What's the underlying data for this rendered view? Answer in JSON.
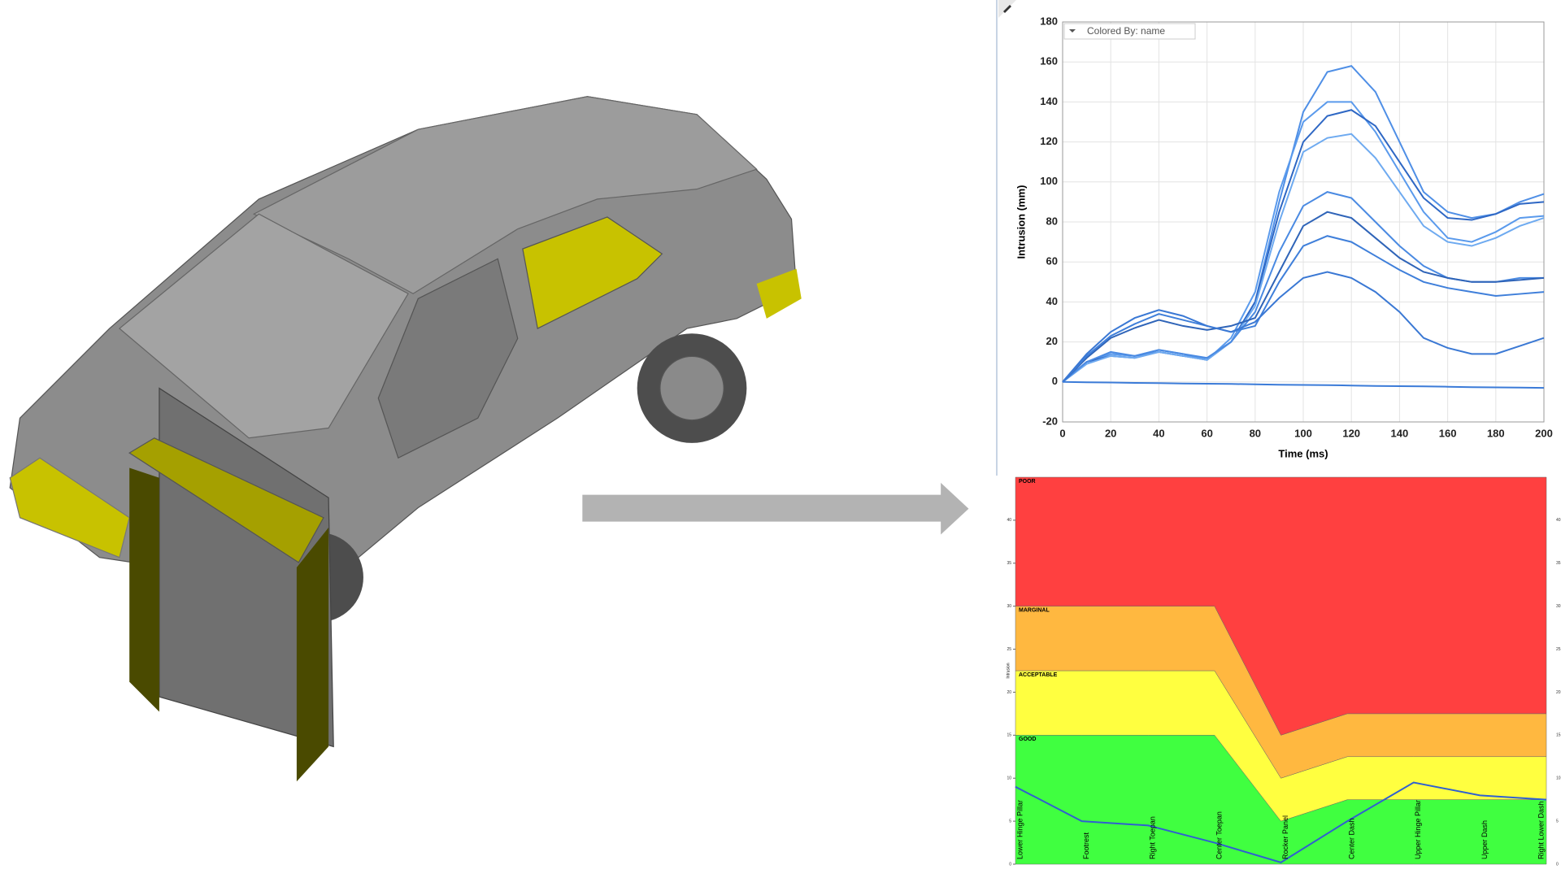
{
  "chart_data": [
    {
      "type": "line",
      "x_label": "Time (ms)",
      "y_label": "Intrusion (mm)",
      "colored_by": "Colored By: name",
      "x": [
        0,
        10,
        20,
        30,
        40,
        50,
        60,
        70,
        80,
        90,
        100,
        110,
        120,
        130,
        140,
        150,
        160,
        170,
        180,
        190,
        200
      ],
      "xlim": [
        0,
        200
      ],
      "ylim": [
        -20,
        180
      ],
      "xticks": [
        0,
        20,
        40,
        60,
        80,
        100,
        120,
        140,
        160,
        180,
        200
      ],
      "yticks": [
        -20,
        0,
        20,
        40,
        60,
        80,
        100,
        120,
        140,
        160,
        180
      ],
      "grid": true,
      "series": [
        {
          "color": "#4f8fe6",
          "values": [
            0,
            10,
            14,
            13,
            15,
            13,
            12,
            20,
            40,
            90,
            135,
            155,
            158,
            145,
            120,
            95,
            85,
            82,
            84,
            90,
            94
          ]
        },
        {
          "color": "#5a9aec",
          "values": [
            0,
            10,
            14,
            13,
            16,
            14,
            11,
            22,
            45,
            95,
            130,
            140,
            140,
            125,
            105,
            85,
            72,
            70,
            75,
            82,
            83
          ]
        },
        {
          "color": "#2e67c4",
          "values": [
            0,
            10,
            13,
            12,
            15,
            13,
            11,
            20,
            40,
            85,
            120,
            133,
            136,
            128,
            110,
            92,
            82,
            81,
            84,
            89,
            90
          ]
        },
        {
          "color": "#6eaaf0",
          "values": [
            0,
            9,
            13,
            12,
            15,
            13,
            11,
            20,
            38,
            80,
            115,
            122,
            124,
            112,
            95,
            78,
            70,
            68,
            72,
            78,
            82
          ]
        },
        {
          "color": "#4a8ae2",
          "values": [
            0,
            10,
            15,
            13,
            16,
            14,
            12,
            20,
            35,
            65,
            88,
            95,
            92,
            80,
            68,
            58,
            52,
            50,
            50,
            52,
            52
          ]
        },
        {
          "color": "#2f64b8",
          "values": [
            0,
            12,
            22,
            27,
            31,
            28,
            26,
            28,
            32,
            55,
            78,
            85,
            82,
            72,
            62,
            55,
            52,
            50,
            50,
            51,
            52
          ]
        },
        {
          "color": "#3f7fda",
          "values": [
            0,
            13,
            23,
            29,
            34,
            31,
            28,
            25,
            28,
            50,
            68,
            73,
            70,
            63,
            56,
            50,
            47,
            45,
            43,
            44,
            45
          ]
        },
        {
          "color": "#3a78d4",
          "values": [
            0,
            14,
            25,
            32,
            36,
            33,
            28,
            25,
            30,
            42,
            52,
            55,
            52,
            45,
            35,
            22,
            17,
            14,
            14,
            18,
            22
          ]
        },
        {
          "color": "#3b7bd8",
          "values": [
            0,
            -0.2,
            -0.3,
            -0.5,
            -0.6,
            -0.8,
            -0.9,
            -1,
            -1.2,
            -1.4,
            -1.5,
            -1.6,
            -1.8,
            -2,
            -2.1,
            -2.2,
            -2.4,
            -2.6,
            -2.7,
            -2.8,
            -3
          ]
        }
      ]
    },
    {
      "type": "stacked_area",
      "y_label": "Intrusion",
      "categories": [
        "Lower Hinge Pillar",
        "Footrest",
        "Right Toepan",
        "Center Toepan",
        "Rocker Panel",
        "Center Dash",
        "Upper Hinge Pillar",
        "Upper Dash",
        "Right Lower Dash"
      ],
      "ylim": [
        0,
        45
      ],
      "yticks": [
        0,
        5,
        10,
        15,
        20,
        25,
        30,
        35,
        40
      ],
      "series": [
        {
          "name": "GOOD",
          "color": "#40ff40",
          "values": [
            15,
            15,
            15,
            15,
            5,
            7.5,
            7.5,
            7.5,
            7.5
          ]
        },
        {
          "name": "ACCEPTABLE",
          "color": "#ffff40",
          "values": [
            7.5,
            7.5,
            7.5,
            7.5,
            5,
            5,
            5,
            5,
            5
          ]
        },
        {
          "name": "MARGINAL",
          "color": "#ffb840",
          "values": [
            7.5,
            7.5,
            7.5,
            7.5,
            5,
            5,
            5,
            5,
            5
          ]
        },
        {
          "name": "POOR",
          "color": "#ff4040",
          "values": [
            15,
            15,
            15,
            15,
            30,
            27.5,
            27.5,
            27.5,
            27.5
          ]
        }
      ],
      "line": {
        "color": "#3060d0",
        "values": [
          9,
          5,
          4.5,
          2.5,
          0.2,
          5,
          9.5,
          8,
          7.5
        ]
      }
    }
  ]
}
